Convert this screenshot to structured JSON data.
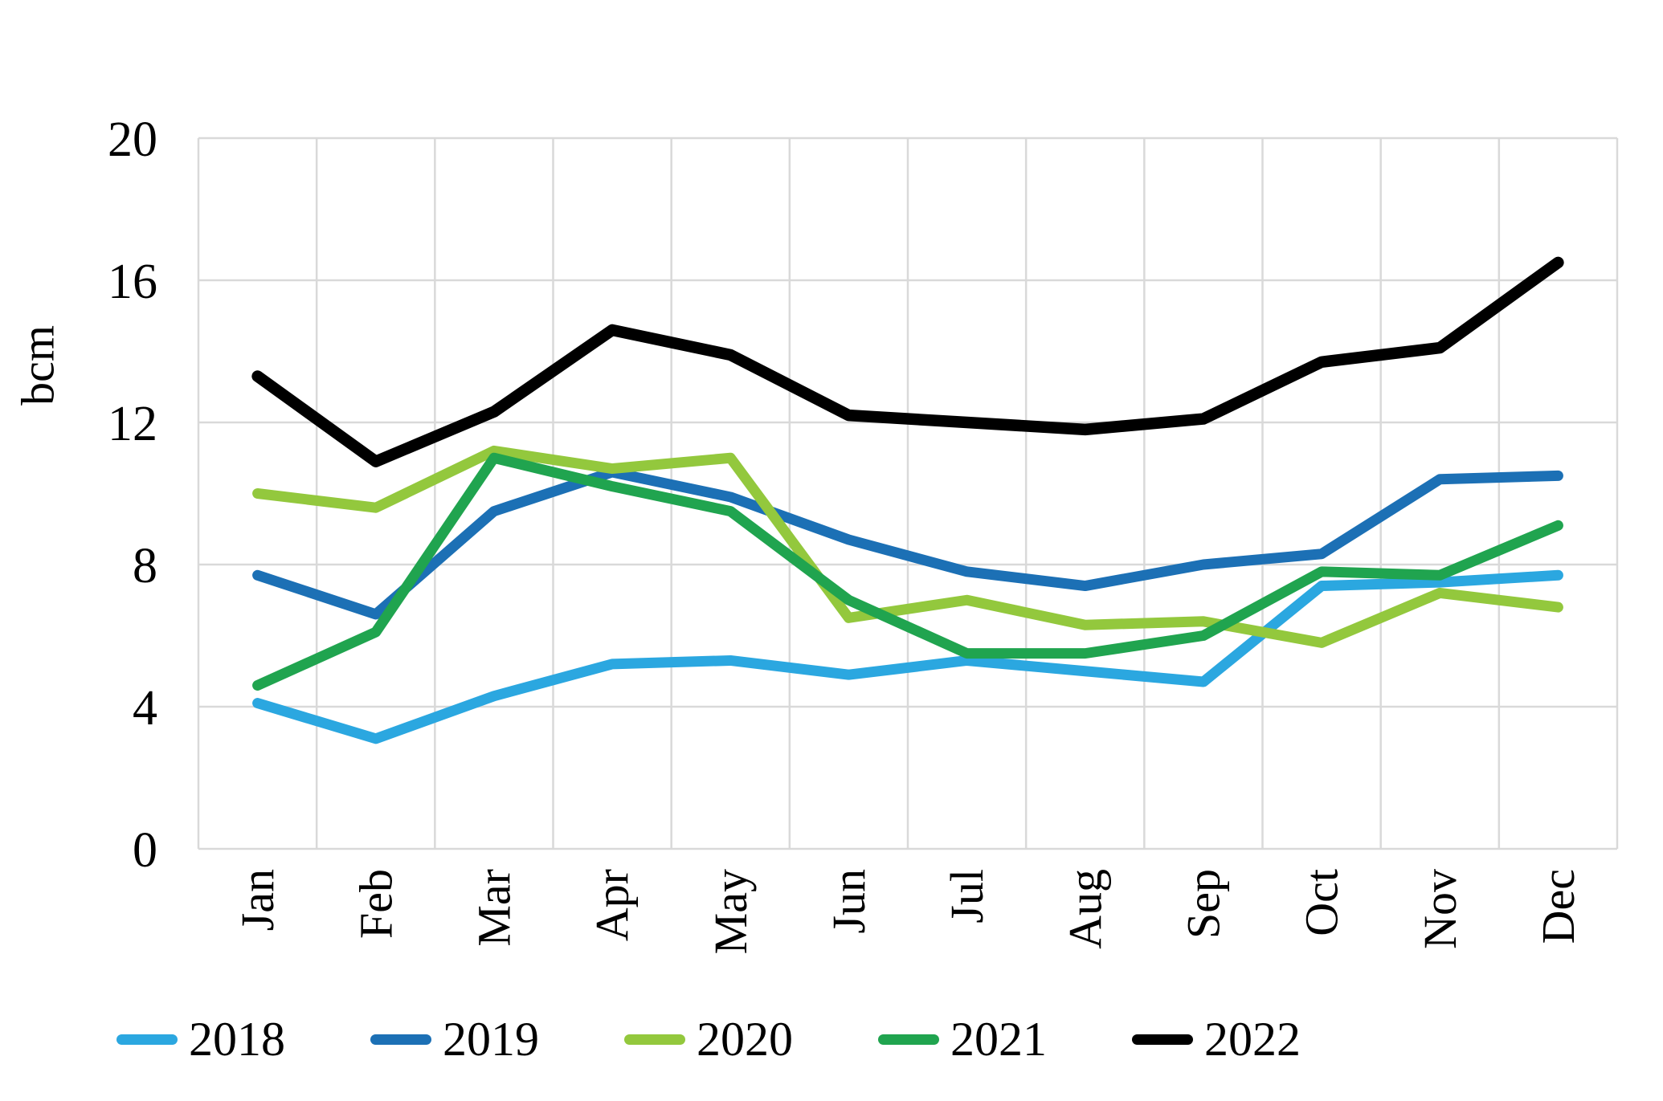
{
  "chart_data": {
    "type": "line",
    "title": "",
    "ylabel": "bcm",
    "xlabel": "",
    "ylim": [
      0,
      20
    ],
    "yticks": [
      0,
      4,
      8,
      12,
      16,
      20
    ],
    "grid": true,
    "legend_position": "bottom",
    "categories": [
      "Jan",
      "Feb",
      "Mar",
      "Apr",
      "May",
      "Jun",
      "Jul",
      "Aug",
      "Sep",
      "Oct",
      "Nov",
      "Dec"
    ],
    "series": [
      {
        "name": "2018",
        "color": "#2BA7E0",
        "values": [
          4.1,
          3.1,
          4.3,
          5.2,
          5.3,
          4.9,
          5.3,
          5.0,
          4.7,
          7.4,
          7.5,
          7.7
        ]
      },
      {
        "name": "2019",
        "color": "#1C70B5",
        "values": [
          7.7,
          6.6,
          9.5,
          10.6,
          9.9,
          8.7,
          7.8,
          7.4,
          8.0,
          8.3,
          10.4,
          10.5
        ]
      },
      {
        "name": "2020",
        "color": "#93C83D",
        "values": [
          10.0,
          9.6,
          11.2,
          10.7,
          11.0,
          6.5,
          7.0,
          6.3,
          6.4,
          5.8,
          7.2,
          6.8
        ]
      },
      {
        "name": "2021",
        "color": "#20A44F",
        "values": [
          4.6,
          6.1,
          11.0,
          10.2,
          9.5,
          7.0,
          5.5,
          5.5,
          6.0,
          7.8,
          7.7,
          9.1
        ]
      },
      {
        "name": "2022",
        "color": "#000000",
        "values": [
          13.3,
          10.9,
          12.3,
          14.6,
          13.9,
          12.2,
          12.0,
          11.8,
          12.1,
          13.7,
          14.1,
          16.5
        ]
      }
    ]
  },
  "colors": {
    "background": "#FFFFFF",
    "gridline": "#D9D9D9",
    "text": "#000000"
  }
}
